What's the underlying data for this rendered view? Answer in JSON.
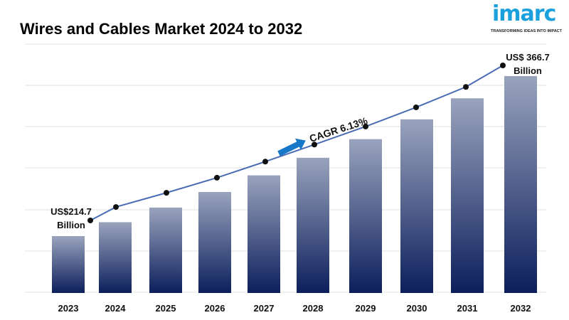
{
  "header": {
    "title": "Wires and Cables Market 2024 to 2032",
    "logo_text": "imarc",
    "logo_tagline": "TRANSFORMING IDEAS INTO IMPACT"
  },
  "chart_data": {
    "type": "bar",
    "title": "Wires and Cables Market 2024 to 2032",
    "categories": [
      "2023",
      "2024",
      "2025",
      "2026",
      "2027",
      "2028",
      "2029",
      "2030",
      "2031",
      "2032"
    ],
    "values": [
      214.7,
      227.9,
      241.8,
      256.6,
      272.4,
      289.1,
      306.8,
      325.6,
      345.6,
      366.7
    ],
    "unit": "US$ Billion",
    "overlay_line": true,
    "grid": true,
    "annotations": {
      "start_line1": "US$214.7",
      "start_line2": "Billion",
      "end_line1": "US$ 366.7",
      "end_line2": "Billion",
      "cagr": "CAGR 6.13%"
    },
    "colors": {
      "bar_top": "#9aa3bd",
      "bar_bottom": "#0c1f5c",
      "line": "#4a6cb5",
      "marker": "#111111",
      "arrow": "#1878c8"
    }
  }
}
